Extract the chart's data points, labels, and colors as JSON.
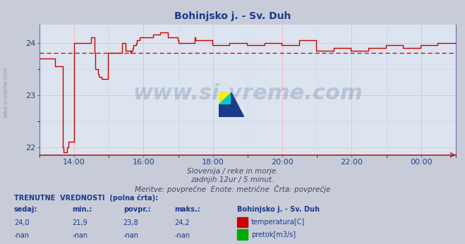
{
  "title": "Bohinjsko j. - Sv. Duh",
  "bg_color": "#c8ccd8",
  "plot_bg_color": "#dce4f0",
  "grid_color_major": "#ffaaaa",
  "grid_color_minor": "#ccccdd",
  "line_color": "#cc0000",
  "avg_line_color": "#cc0000",
  "avg_value": 23.8,
  "y_min": 21.85,
  "y_max": 24.35,
  "y_ticks": [
    22,
    23,
    24
  ],
  "x_labels": [
    "14:00",
    "16:00",
    "18:00",
    "20:00",
    "22:00",
    "00:00"
  ],
  "subtitle1": "Slovenija / reke in morje.",
  "subtitle2": "zadnjih 12ur / 5 minut.",
  "subtitle3": "Meritve: povprečne  Enote: metrične  Črta: povprečje",
  "label_current": "TRENUTNE  VREDNOSTI  (polna črta):",
  "col_sedaj": "sedaj:",
  "col_min": "min.:",
  "col_povpr": "povpr.:",
  "col_maks": "maks.:",
  "col_station": "Bohinjsko j. - Sv. Duh",
  "val_sedaj_temp": "24,0",
  "val_min_temp": "21,9",
  "val_povpr_temp": "23,8",
  "val_maks_temp": "24,2",
  "val_sedaj_pretok": "-nan",
  "val_min_pretok": "-nan",
  "val_povpr_pretok": "-nan",
  "val_maks_pretok": "-nan",
  "legend_temp": "temperatura[C]",
  "legend_pretok": "pretok[m3/s]",
  "temp_color": "#cc0000",
  "pretok_color": "#00aa00",
  "watermark_color": "#1a3a6a",
  "axis_label_color": "#1a4488",
  "tick_color": "#1a4488",
  "spine_color_bottom": "#aa2222",
  "spine_color_side": "#6666aa"
}
